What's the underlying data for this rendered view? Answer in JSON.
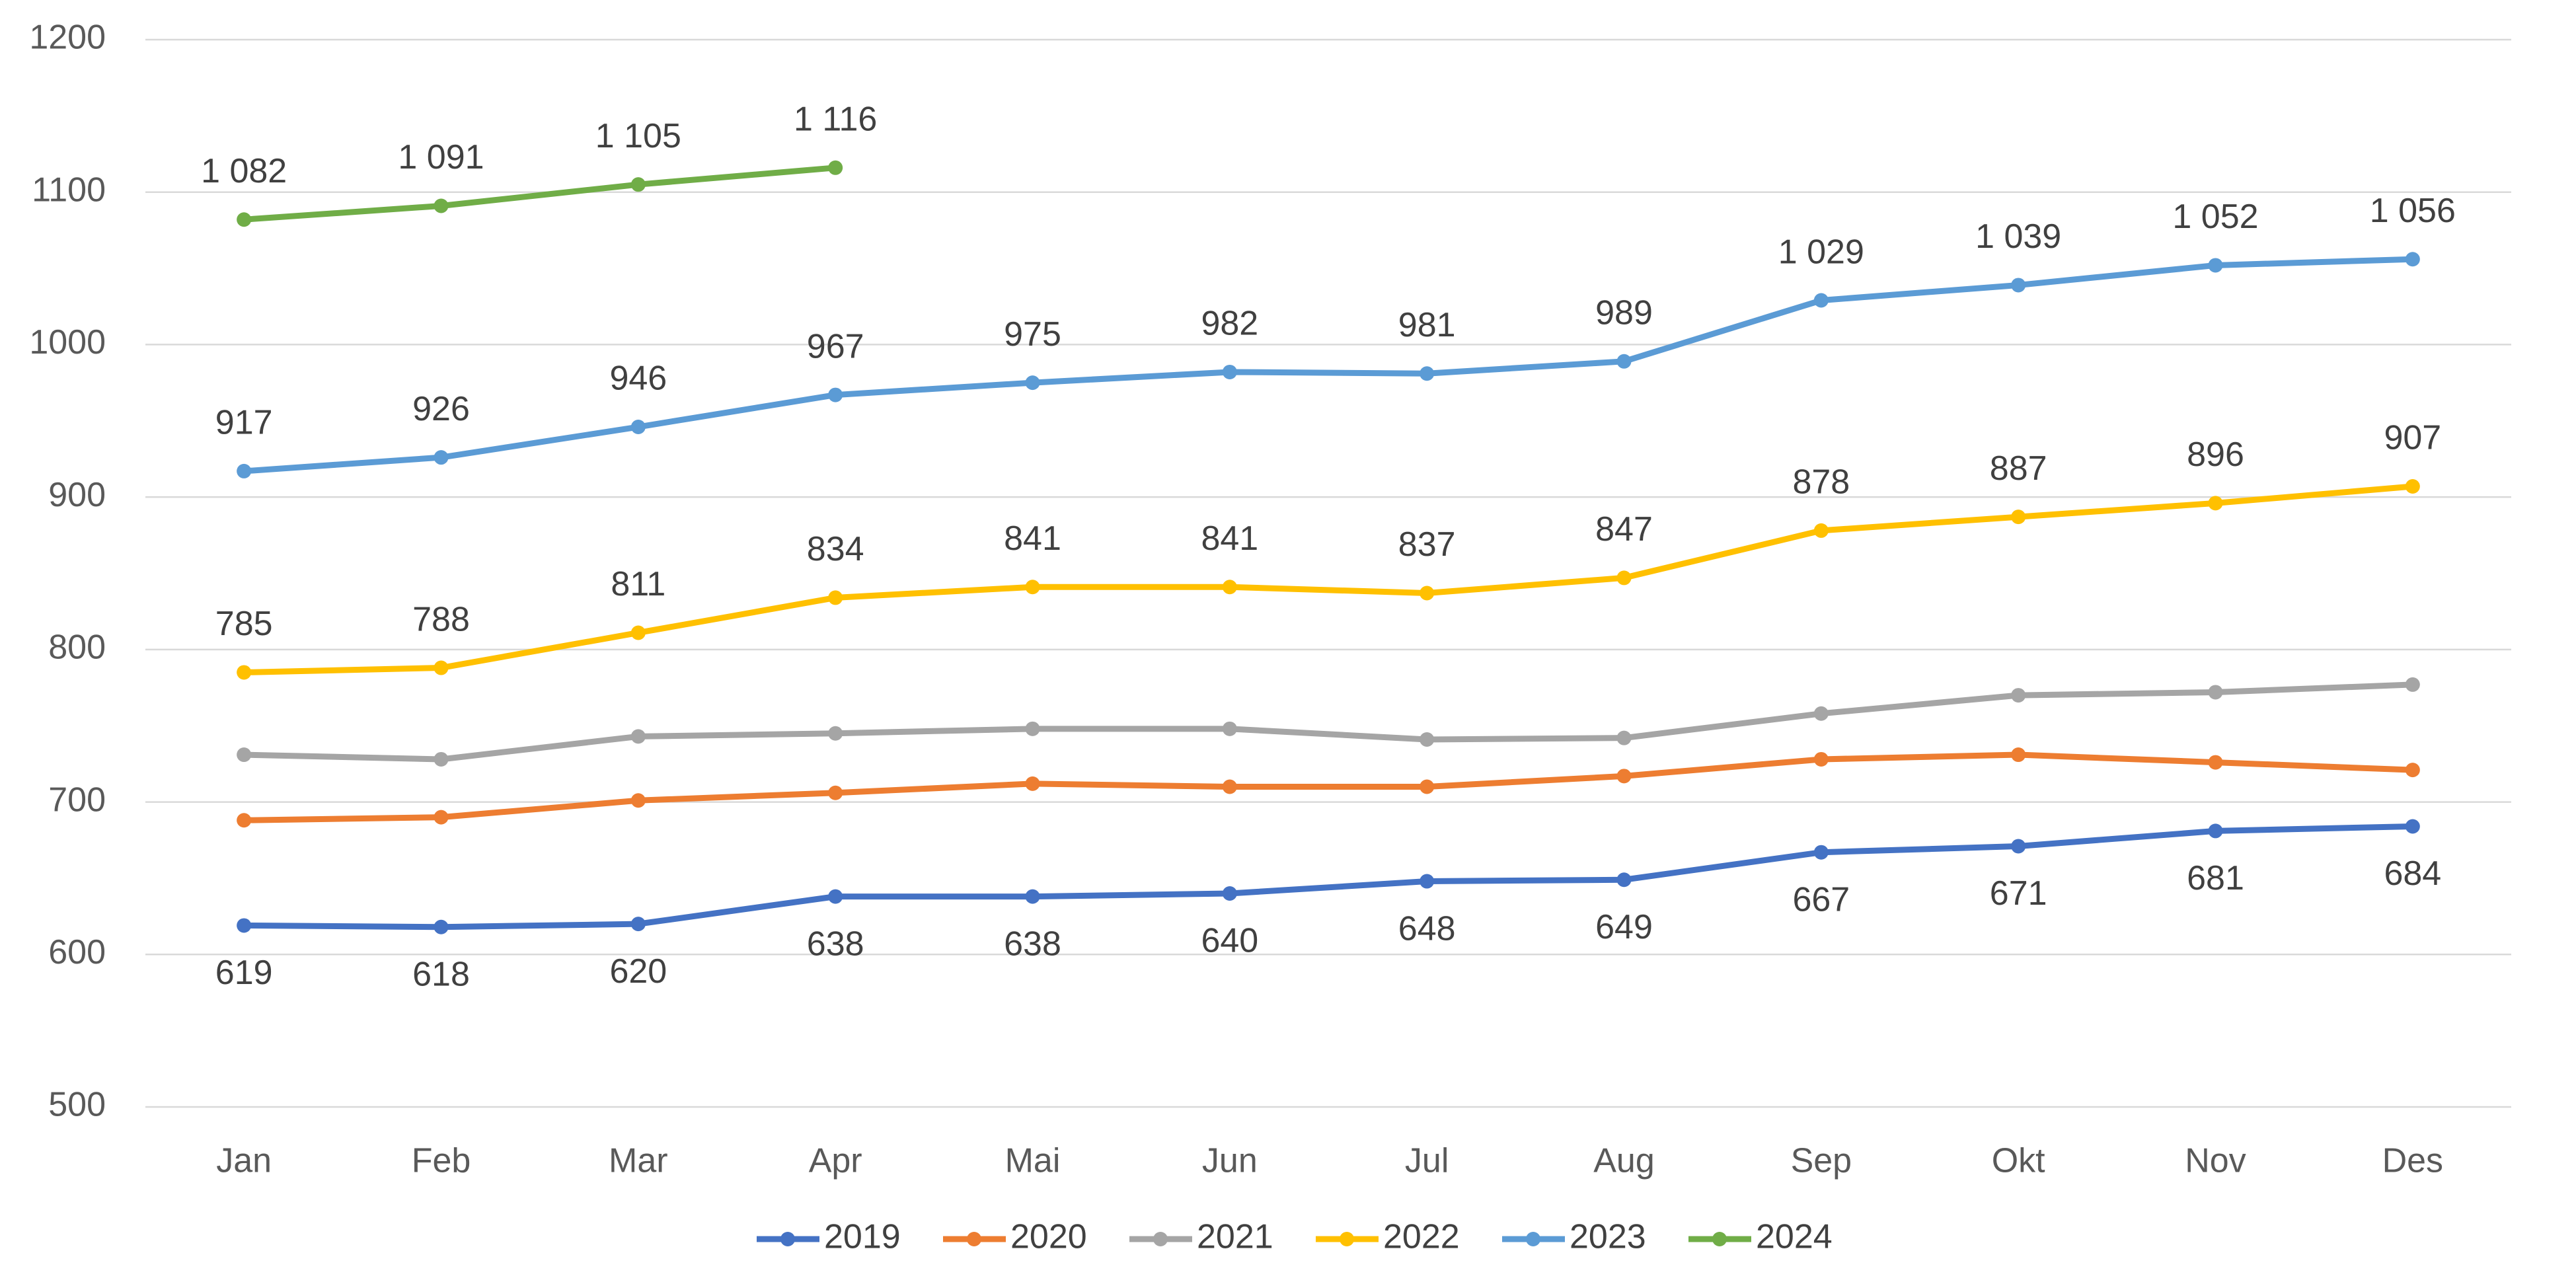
{
  "chart_data": {
    "type": "line",
    "categories": [
      "Jan",
      "Feb",
      "Mar",
      "Apr",
      "Mai",
      "Jun",
      "Jul",
      "Aug",
      "Sep",
      "Okt",
      "Nov",
      "Des"
    ],
    "ylim": [
      500,
      1200
    ],
    "yticks": [
      500,
      600,
      700,
      800,
      900,
      1000,
      1100,
      1200
    ],
    "grid": true,
    "legend": "bottom",
    "series": [
      {
        "name": "2019",
        "color": "#4472c4",
        "labels": "below",
        "values": [
          619,
          618,
          620,
          638,
          638,
          640,
          648,
          649,
          667,
          671,
          681,
          684
        ]
      },
      {
        "name": "2020",
        "color": "#ed7d31",
        "values": [
          688,
          690,
          701,
          706,
          712,
          710,
          710,
          717,
          728,
          731,
          726,
          721
        ]
      },
      {
        "name": "2021",
        "color": "#a5a5a5",
        "values": [
          731,
          728,
          743,
          745,
          748,
          748,
          741,
          742,
          758,
          770,
          772,
          777
        ]
      },
      {
        "name": "2022",
        "color": "#ffc000",
        "labels": "above",
        "values": [
          785,
          788,
          811,
          834,
          841,
          841,
          837,
          847,
          878,
          887,
          896,
          907
        ]
      },
      {
        "name": "2023",
        "color": "#5b9bd5",
        "labels": "above",
        "values": [
          917,
          926,
          946,
          967,
          975,
          982,
          981,
          989,
          1029,
          1039,
          1052,
          1056
        ],
        "value_labels": [
          "917",
          "926",
          "946",
          "967",
          "975",
          "982",
          "981",
          "989",
          "1 029",
          "1 039",
          "1 052",
          "1 056"
        ]
      },
      {
        "name": "2024",
        "color": "#70ad47",
        "labels": "above",
        "values": [
          1082,
          1091,
          1105,
          1116,
          null,
          null,
          null,
          null,
          null,
          null,
          null,
          null
        ],
        "value_labels": [
          "1 082",
          "1 091",
          "1 105",
          "1 116",
          null,
          null,
          null,
          null,
          null,
          null,
          null,
          null
        ]
      }
    ]
  }
}
